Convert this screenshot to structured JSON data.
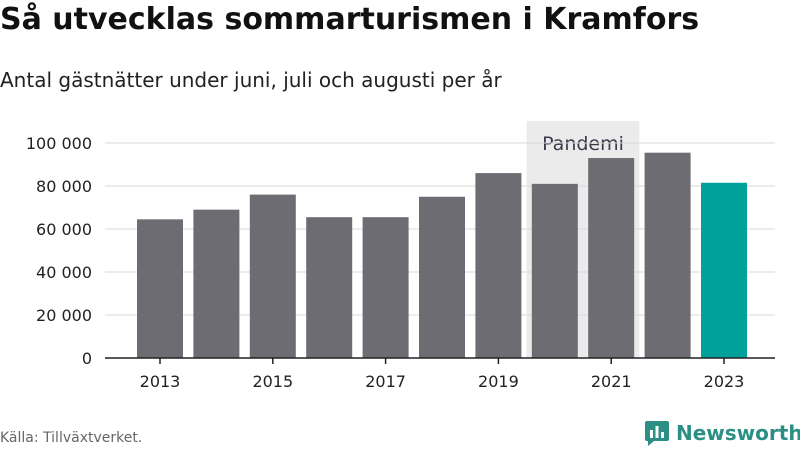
{
  "header": {
    "title": "Så utvecklas sommarturismen i Kramfors",
    "subtitle": "Antal gästnätter under juni, juli och augusti per år"
  },
  "footer": {
    "source": "Källa: Tillväxtverket.",
    "brand": "Newsworthy"
  },
  "colors": {
    "bar": "#6d6c72",
    "highlight": "#00a19a",
    "band": "#ebebeb",
    "brand": "#2b8f86"
  },
  "chart_data": {
    "type": "bar",
    "title": "Så utvecklas sommarturismen i Kramfors",
    "subtitle": "Antal gästnätter under juni, juli och augusti per år",
    "categories": [
      "2013",
      "2014",
      "2015",
      "2016",
      "2017",
      "2018",
      "2019",
      "2020",
      "2021",
      "2022",
      "2023"
    ],
    "values": [
      64500,
      69000,
      76000,
      65500,
      65500,
      75000,
      86000,
      81000,
      93000,
      95500,
      81500
    ],
    "highlight_category": "2023",
    "x_tick_labels": [
      "2013",
      "2015",
      "2017",
      "2019",
      "2021",
      "2023"
    ],
    "y_ticks": [
      0,
      20000,
      40000,
      60000,
      80000,
      100000
    ],
    "y_tick_labels": [
      "0",
      "20 000",
      "40 000",
      "60 000",
      "80 000",
      "100 000"
    ],
    "ylim": [
      0,
      100000
    ],
    "grid": true,
    "legend": "none",
    "annotations": [
      {
        "label": "Pandemi",
        "from": "2020",
        "to": "2021"
      }
    ]
  }
}
